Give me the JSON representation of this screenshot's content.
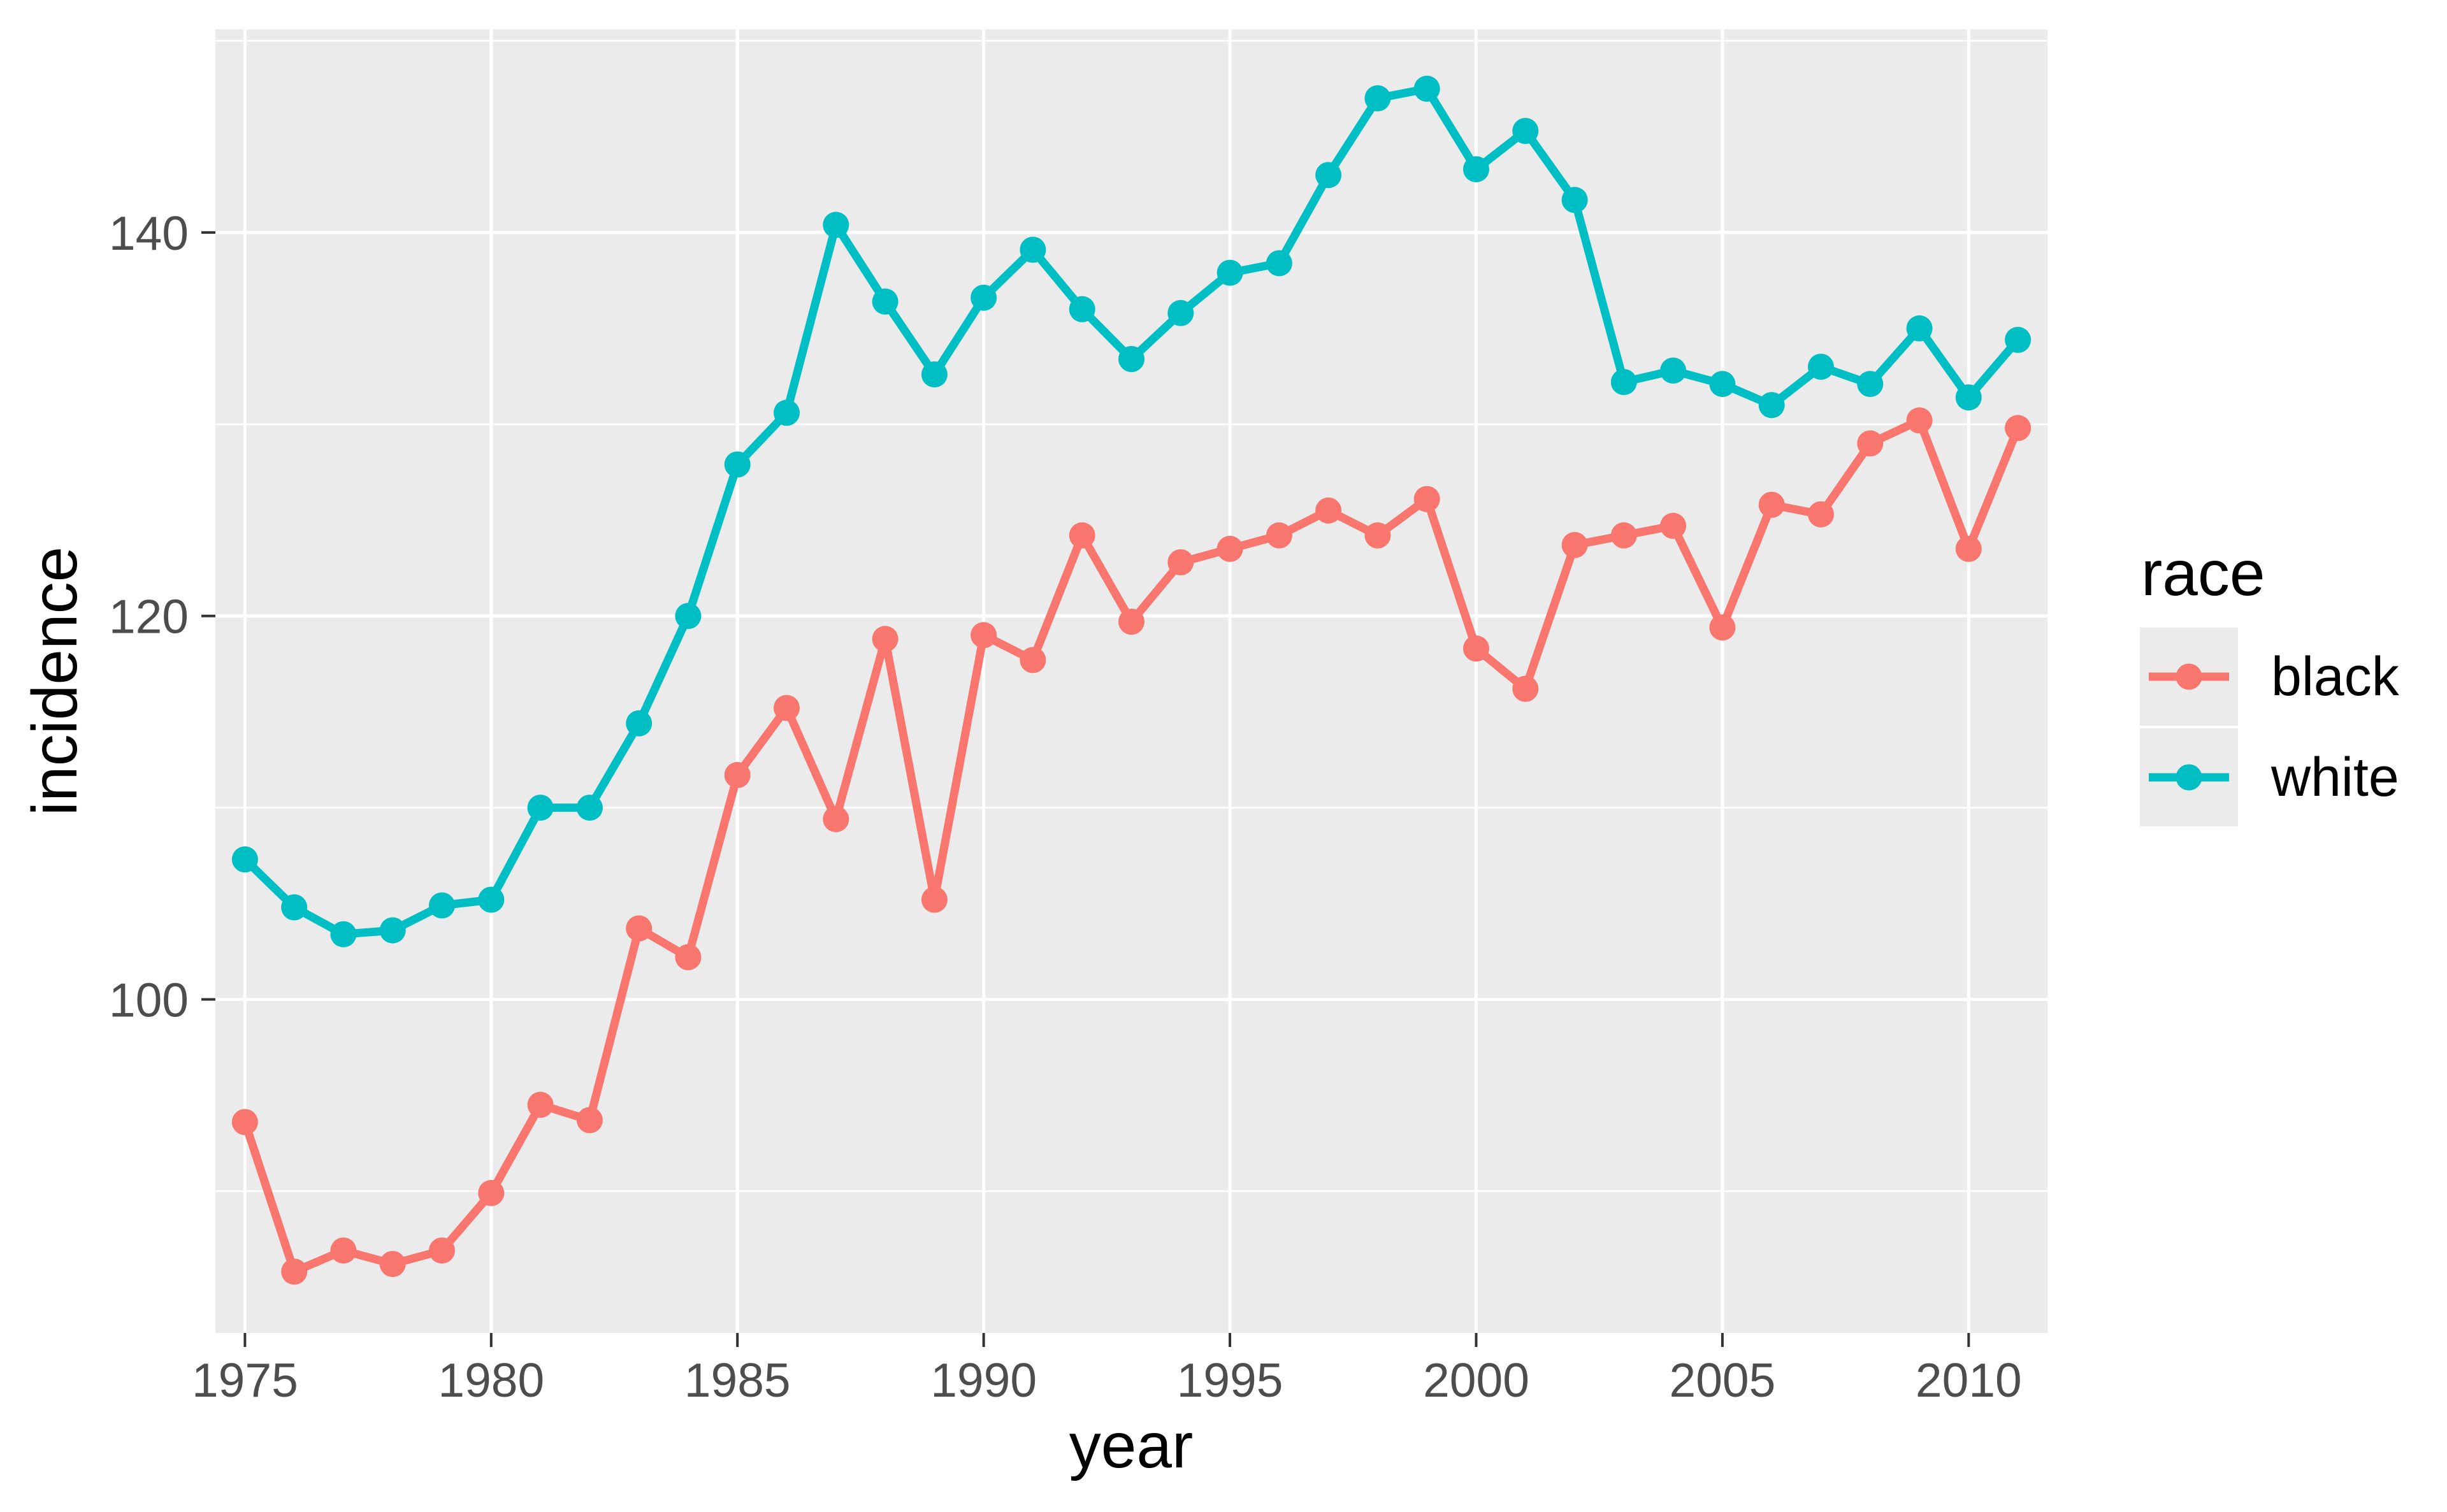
{
  "figure": {
    "background": "#FFFFFF",
    "panel_fill": "#EBEBEB",
    "grid_color": "#FFFFFF",
    "tick_color": "#333333",
    "tick_label_color": "#4D4D4D",
    "title_color": "#000000"
  },
  "chart_data": {
    "type": "line",
    "title": "",
    "xlabel": "year",
    "ylabel": "incidence",
    "legend_title": "race",
    "legend_position": "right",
    "grid": "on",
    "x": [
      1975,
      1976,
      1977,
      1978,
      1979,
      1980,
      1981,
      1982,
      1983,
      1984,
      1985,
      1986,
      1987,
      1988,
      1989,
      1990,
      1991,
      1992,
      1993,
      1994,
      1995,
      1996,
      1997,
      1998,
      1999,
      2000,
      2001,
      2002,
      2003,
      2004,
      2005,
      2006,
      2007,
      2008,
      2009,
      2010,
      2011
    ],
    "series": [
      {
        "name": "black",
        "color": "#F8766D",
        "values": [
          93.6,
          85.8,
          86.9,
          86.2,
          86.9,
          89.9,
          94.5,
          93.7,
          103.7,
          102.2,
          111.7,
          115.2,
          109.4,
          118.8,
          105.2,
          119.0,
          117.7,
          124.2,
          119.7,
          122.8,
          123.5,
          124.2,
          125.5,
          124.2,
          126.1,
          118.3,
          116.2,
          123.7,
          124.2,
          124.7,
          119.4,
          125.8,
          125.3,
          129.0,
          130.2,
          123.5,
          129.8
        ]
      },
      {
        "name": "white",
        "color": "#00BFC4",
        "values": [
          107.3,
          104.8,
          103.4,
          103.6,
          104.9,
          105.2,
          110.0,
          110.0,
          114.4,
          120.0,
          127.9,
          130.6,
          140.4,
          136.4,
          132.6,
          136.6,
          139.1,
          136.0,
          133.4,
          135.8,
          137.9,
          138.4,
          143.0,
          147.0,
          147.5,
          143.3,
          145.3,
          141.7,
          132.2,
          132.8,
          132.1,
          131.0,
          133.0,
          132.1,
          135.0,
          131.4,
          134.4
        ]
      }
    ],
    "xlim": [
      1974.4,
      2011.6
    ],
    "ylim": [
      82.6,
      150.6
    ],
    "x_ticks": [
      1975,
      1980,
      1985,
      1990,
      1995,
      2000,
      2005,
      2010
    ],
    "y_ticks": [
      100,
      120,
      140
    ],
    "y_minor_ticks": [
      90,
      110,
      130,
      150
    ]
  },
  "legend": {
    "title": "race",
    "items": [
      {
        "label": "black",
        "color": "#F8766D"
      },
      {
        "label": "white",
        "color": "#00BFC4"
      }
    ]
  }
}
